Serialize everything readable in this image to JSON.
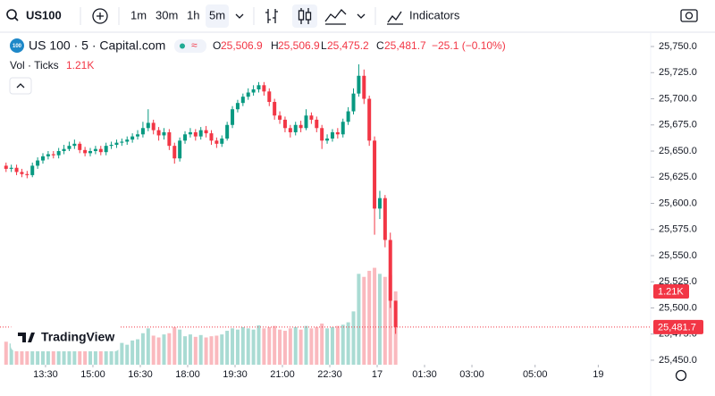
{
  "toolbar": {
    "symbol": "US100",
    "intervals": [
      "1m",
      "30m",
      "1h",
      "5m"
    ],
    "indicators": "Indicators"
  },
  "legend": {
    "icon": "100",
    "title": "US 100 · 5 · Capital.com",
    "badge": "≈",
    "o_key": "O",
    "o": "25,506.9",
    "h_key": "H",
    "h": "25,506.9",
    "l_key": "L",
    "l": "25,475.2",
    "c_key": "C",
    "c": "25,481.7",
    "change": "−25.1 (−0.10%)",
    "volume_title": "Vol · Ticks",
    "volume_value": "1.21K"
  },
  "chart_data": {
    "type": "candlestick",
    "watermark": "TradingView",
    "up_color": "#089981",
    "down_color": "#f23645",
    "grid": false,
    "x": [
      735,
      745,
      755,
      765,
      775,
      785,
      795,
      805,
      815,
      825,
      835,
      845,
      855,
      865,
      875,
      885,
      895,
      905,
      915,
      925,
      935,
      945,
      955,
      965,
      975,
      985,
      995,
      1005,
      1015,
      1025,
      1035,
      1045,
      1055,
      1065,
      1075,
      1085,
      1095,
      1105,
      1115,
      1125,
      1135,
      1145,
      1155,
      1165,
      1175,
      1185,
      1195,
      1205,
      1215,
      1225,
      1235,
      1245,
      1255,
      1265,
      1275,
      1285,
      1295,
      1305,
      1315,
      1325,
      1335,
      1345,
      1355,
      1365,
      1375,
      1385,
      1395,
      1405,
      1415,
      1425,
      1435,
      1445,
      1455,
      1465,
      1475
    ],
    "open": [
      25636,
      25633,
      25634,
      25630,
      25628,
      25627,
      25636,
      25641,
      25645,
      25647,
      25646,
      25650,
      25652,
      25655,
      25657,
      25651,
      25648,
      25650,
      25652,
      25649,
      25655,
      25656,
      25658,
      25659,
      25661,
      25664,
      25666,
      25672,
      25677,
      25670,
      25665,
      25668,
      25655,
      25643,
      25660,
      25666,
      25668,
      25664,
      25670,
      25667,
      25660,
      25657,
      25662,
      25675,
      25690,
      25696,
      25702,
      25706,
      25709,
      25713,
      25707,
      25697,
      25684,
      25680,
      25672,
      25668,
      25675,
      25672,
      25684,
      25680,
      25672,
      25660,
      25662,
      25668,
      25666,
      25678,
      25688,
      25705,
      25722,
      25700,
      25660,
      25595,
      25605,
      25565,
      25506.9
    ],
    "high": [
      25639,
      25637,
      25637,
      25633,
      25631,
      25639,
      25644,
      25648,
      25650,
      25650,
      25653,
      25656,
      25659,
      25661,
      25659,
      25654,
      25653,
      25655,
      25655,
      25658,
      25659,
      25661,
      25662,
      25664,
      25667,
      25670,
      25678,
      25690,
      25680,
      25673,
      25672,
      25671,
      25658,
      25663,
      25669,
      25672,
      25671,
      25673,
      25674,
      25670,
      25663,
      25665,
      25678,
      25693,
      25699,
      25705,
      25710,
      25713,
      25716,
      25716,
      25710,
      25700,
      25688,
      25683,
      25675,
      25678,
      25679,
      25690,
      25687,
      25683,
      25675,
      25666,
      25671,
      25672,
      25681,
      25692,
      25710,
      25733,
      25728,
      25703,
      25664,
      25612,
      25608,
      25572,
      25506.9
    ],
    "low": [
      25630,
      25630,
      25627,
      25625,
      25624,
      25625,
      25633,
      25638,
      25642,
      25643,
      25643,
      25647,
      25650,
      25652,
      25648,
      25645,
      25645,
      25647,
      25646,
      25646,
      25652,
      25653,
      25655,
      25656,
      25658,
      25661,
      25663,
      25669,
      25666,
      25660,
      25661,
      25651,
      25638,
      25640,
      25657,
      25663,
      25660,
      25661,
      25663,
      25656,
      25653,
      25654,
      25660,
      25672,
      25687,
      25693,
      25699,
      25703,
      25706,
      25703,
      25693,
      25680,
      25676,
      25668,
      25663,
      25665,
      25668,
      25670,
      25676,
      25668,
      25652,
      25657,
      25659,
      25662,
      25663,
      25675,
      25685,
      25702,
      25695,
      25655,
      25570,
      25585,
      25558,
      25500,
      25475.2
    ],
    "close": [
      25633,
      25634,
      25630,
      25628,
      25627,
      25636,
      25641,
      25645,
      25647,
      25646,
      25650,
      25652,
      25655,
      25657,
      25651,
      25648,
      25650,
      25652,
      25649,
      25655,
      25656,
      25658,
      25659,
      25661,
      25664,
      25666,
      25672,
      25677,
      25670,
      25665,
      25668,
      25655,
      25643,
      25660,
      25666,
      25668,
      25664,
      25670,
      25667,
      25660,
      25657,
      25662,
      25675,
      25690,
      25696,
      25702,
      25706,
      25709,
      25713,
      25707,
      25697,
      25684,
      25680,
      25672,
      25668,
      25675,
      25672,
      25684,
      25680,
      25672,
      25660,
      25662,
      25668,
      25666,
      25678,
      25688,
      25705,
      25722,
      25700,
      25660,
      25595,
      25605,
      25565,
      25506.9,
      25481.7
    ],
    "volume": [
      380,
      350,
      420,
      300,
      330,
      360,
      400,
      310,
      340,
      290,
      380,
      350,
      320,
      300,
      360,
      310,
      330,
      300,
      350,
      380,
      340,
      310,
      360,
      330,
      400,
      420,
      520,
      600,
      480,
      450,
      500,
      520,
      620,
      580,
      470,
      500,
      460,
      490,
      450,
      470,
      480,
      500,
      560,
      600,
      580,
      620,
      600,
      580,
      650,
      600,
      620,
      640,
      580,
      560,
      600,
      620,
      580,
      640,
      600,
      620,
      680,
      600,
      620,
      640,
      660,
      700,
      880,
      1500,
      1450,
      1550,
      1600,
      1500,
      1450,
      1480,
      1210
    ],
    "volume_label": "1.21K",
    "last_price_label": "25,481.7",
    "xlim": [
      723.5,
      1959.5
    ],
    "xticks": [
      {
        "value": 810,
        "label": "13:30"
      },
      {
        "value": 900,
        "label": "15:00"
      },
      {
        "value": 990,
        "label": "16:30"
      },
      {
        "value": 1080,
        "label": "18:00"
      },
      {
        "value": 1170,
        "label": "19:30"
      },
      {
        "value": 1260,
        "label": "21:00"
      },
      {
        "value": 1350,
        "label": "22:30"
      },
      {
        "value": 1440,
        "label": "17"
      },
      {
        "value": 1530,
        "label": "01:30"
      },
      {
        "value": 1620,
        "label": "03:00"
      },
      {
        "value": 1740,
        "label": "05:00"
      },
      {
        "value": 1860,
        "label": "19"
      }
    ],
    "ylim": [
      25445.7,
      25763.7
    ],
    "yticks": [
      {
        "value": 25450,
        "label": "25,450.0"
      },
      {
        "value": 25475,
        "label": "25,475.0"
      },
      {
        "value": 25500,
        "label": "25,500.0"
      },
      {
        "value": 25525,
        "label": "25,525.0"
      },
      {
        "value": 25550,
        "label": "25,550.0"
      },
      {
        "value": 25575,
        "label": "25,575.0"
      },
      {
        "value": 25600,
        "label": "25,600.0"
      },
      {
        "value": 25625,
        "label": "25,625.0"
      },
      {
        "value": 25650,
        "label": "25,650.0"
      },
      {
        "value": 25675,
        "label": "25,675.0"
      },
      {
        "value": 25700,
        "label": "25,700.0"
      },
      {
        "value": 25725,
        "label": "25,725.0"
      },
      {
        "value": 25750,
        "label": "25,750.0"
      }
    ]
  }
}
